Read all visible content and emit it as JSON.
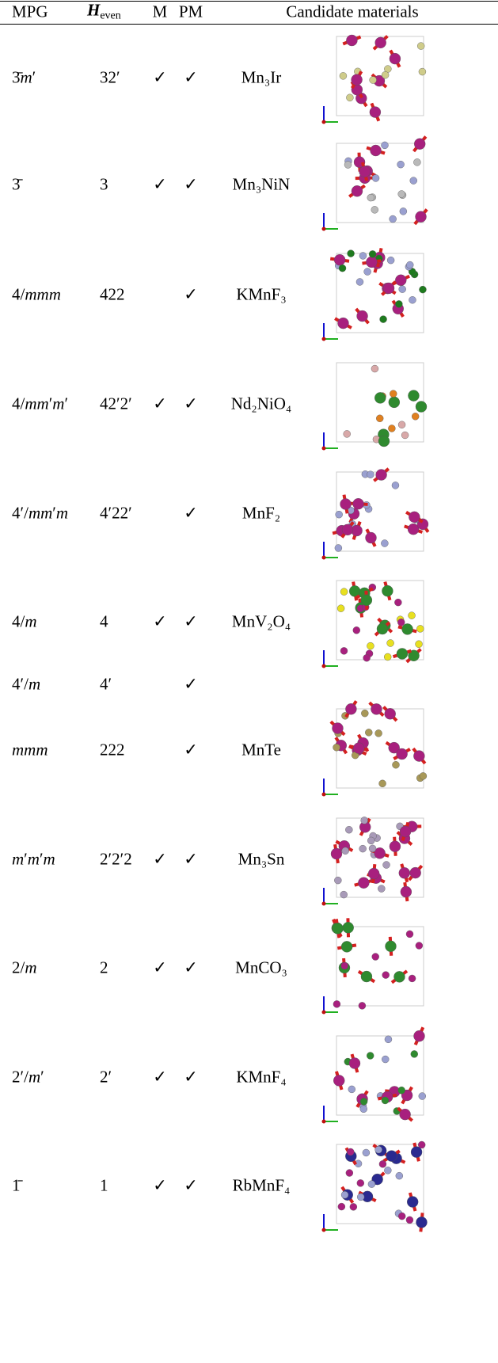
{
  "table": {
    "header": {
      "mpg": "MPG",
      "heven": {
        "symbol": "H",
        "subscript": "even"
      },
      "m": "M",
      "pm": "PM",
      "materials": "Candidate materials"
    },
    "rows": [
      {
        "mpg": "3̄m′",
        "heven": "32′",
        "m": "✓",
        "pm": "✓",
        "material": "Mn₃Ir"
      },
      {
        "mpg": "3̄",
        "heven": "3",
        "m": "✓",
        "pm": "✓",
        "material": "Mn₃NiN"
      },
      {
        "mpg": "4/mmm",
        "heven": "422",
        "m": null,
        "pm": "✓",
        "material": "KMnF₃"
      },
      {
        "mpg": "4/mm′m′",
        "heven": "42′2′",
        "m": "✓",
        "pm": "✓",
        "material": "Nd₂NiO₄"
      },
      {
        "mpg": "4′/mm′m",
        "heven": "4′22′",
        "m": null,
        "pm": "✓",
        "material": "MnF₂"
      },
      {
        "mpg": "4/m",
        "heven": "4",
        "m": "✓",
        "pm": "✓",
        "material": "MnV₂O₄"
      },
      {
        "mpg": "4′/m",
        "heven": "4′",
        "m": null,
        "pm": "✓",
        "material": null
      },
      {
        "mpg": "mmm",
        "heven": "222",
        "m": null,
        "pm": "✓",
        "material": "MnTe"
      },
      {
        "mpg": "m′m′m",
        "heven": "2′2′2",
        "m": "✓",
        "pm": "✓",
        "material": "Mn₃Sn"
      },
      {
        "mpg": "2/m",
        "heven": "2",
        "m": "✓",
        "pm": "✓",
        "material": "MnCO₃"
      },
      {
        "mpg": "2′/m′",
        "heven": "2′",
        "m": "✓",
        "pm": "✓",
        "material": "KMnF₄"
      },
      {
        "mpg": "1̄",
        "heven": "1",
        "m": "✓",
        "pm": "✓",
        "material": "RbMnF₄"
      }
    ]
  }
}
